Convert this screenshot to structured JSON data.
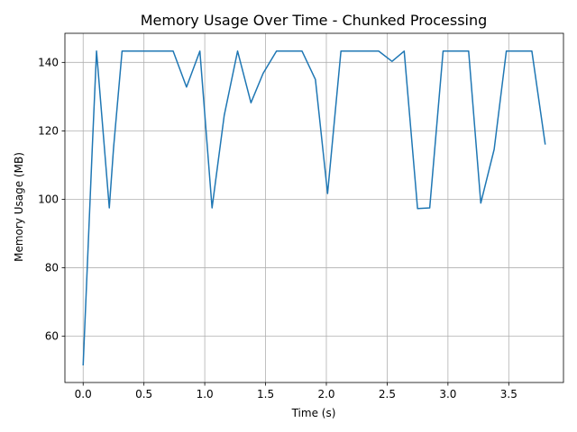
{
  "chart_data": {
    "type": "line",
    "title": "Memory Usage Over Time - Chunked Processing",
    "xlabel": "Time (s)",
    "ylabel": "Memory Usage (MB)",
    "xlim": [
      -0.15,
      3.95
    ],
    "ylim": [
      46.5,
      148.5
    ],
    "xticks": [
      0.0,
      0.5,
      1.0,
      1.5,
      2.0,
      2.5,
      3.0,
      3.5
    ],
    "xtick_labels": [
      "0.0",
      "0.5",
      "1.0",
      "1.5",
      "2.0",
      "2.5",
      "3.0",
      "3.5"
    ],
    "yticks": [
      60,
      80,
      100,
      120,
      140
    ],
    "ytick_labels": [
      "60",
      "80",
      "100",
      "120",
      "140"
    ],
    "grid": true,
    "line_color": "#1f77b4",
    "grid_color": "#b0b0b0",
    "series": [
      {
        "x": [
          0.0,
          0.075,
          0.11,
          0.215,
          0.25,
          0.32,
          0.41,
          0.54,
          0.74,
          0.85,
          0.96,
          1.06,
          1.16,
          1.27,
          1.38,
          1.48,
          1.59,
          1.69,
          1.8,
          1.91,
          2.01,
          2.12,
          2.22,
          2.32,
          2.43,
          2.54,
          2.64,
          2.75,
          2.85,
          2.96,
          3.06,
          3.17,
          3.27,
          3.38,
          3.48,
          3.58,
          3.69,
          3.8
        ],
        "y": [
          51.5,
          115,
          143.3,
          97.5,
          115,
          143.3,
          143.3,
          143.3,
          143.3,
          132.8,
          143.3,
          97.5,
          124.5,
          143.3,
          128.2,
          136.8,
          143.3,
          143.3,
          143.3,
          135.0,
          101.7,
          143.3,
          143.3,
          143.3,
          143.3,
          140.3,
          143.3,
          97.3,
          97.5,
          143.3,
          143.3,
          143.3,
          98.9,
          114.6,
          143.3,
          143.3,
          143.3,
          116.0
        ]
      }
    ]
  }
}
